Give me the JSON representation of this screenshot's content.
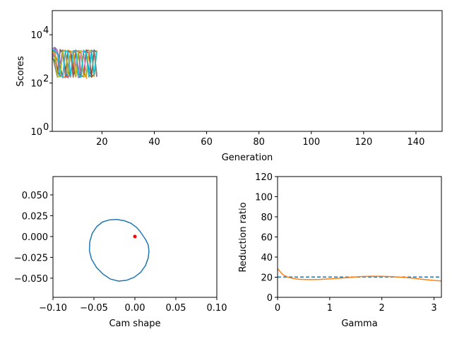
{
  "chart_data": [
    {
      "type": "line",
      "xlabel": "Generation",
      "ylabel": "Scores",
      "yscale": "log",
      "xlim": [
        1,
        150
      ],
      "ylim": [
        1,
        100000
      ],
      "xticks": [
        20,
        40,
        60,
        80,
        100,
        120,
        140
      ],
      "xtick_labels": [
        "20",
        "40",
        "60",
        "80",
        "100",
        "120",
        "140"
      ],
      "yticks": [
        1,
        100,
        10000
      ],
      "ytick_labels_base": [
        "10",
        "10",
        "10"
      ],
      "ytick_labels_exp": [
        "0",
        "2",
        "4"
      ],
      "series": [
        {
          "color": "#1f77b4",
          "x": [
            1,
            2,
            3,
            4,
            5,
            6,
            7,
            8,
            9,
            10,
            11,
            12,
            13,
            14,
            15,
            16,
            17,
            18
          ],
          "y": [
            1800,
            2600,
            1500,
            500,
            180,
            170,
            260,
            2100,
            1900,
            600,
            170,
            180,
            2200,
            1700,
            350,
            200,
            2300,
            1900
          ]
        },
        {
          "color": "#ff7f0e",
          "x": [
            1,
            2,
            3,
            4,
            5,
            6,
            7,
            8,
            9,
            10,
            11,
            12,
            13,
            14,
            15,
            16,
            17,
            18
          ],
          "y": [
            2000,
            1400,
            900,
            300,
            170,
            180,
            2300,
            2000,
            700,
            180,
            2200,
            2100,
            300,
            170,
            2100,
            2200,
            180,
            2300
          ]
        },
        {
          "color": "#2ca02c",
          "x": [
            1,
            2,
            3,
            4,
            5,
            6,
            7,
            8,
            9,
            10,
            11,
            12,
            13,
            14,
            15,
            16,
            17,
            18
          ],
          "y": [
            1200,
            800,
            350,
            180,
            2000,
            2200,
            400,
            170,
            2100,
            1800,
            250,
            190,
            2200,
            2000,
            220,
            180,
            2200,
            200
          ]
        },
        {
          "color": "#d62728",
          "x": [
            1,
            2,
            3,
            4,
            5,
            6,
            7,
            8,
            9,
            10,
            11,
            12,
            13,
            14,
            15,
            16,
            17,
            18
          ],
          "y": [
            2200,
            2000,
            300,
            2100,
            1900,
            200,
            170,
            2200,
            400,
            180,
            2000,
            1700,
            180,
            2200,
            1600,
            180,
            220,
            2100
          ]
        },
        {
          "color": "#9467bd",
          "x": [
            1,
            2,
            3,
            4,
            5,
            6,
            7,
            8,
            9,
            10,
            11,
            12,
            13,
            14,
            15,
            16,
            17,
            18
          ],
          "y": [
            2600,
            3000,
            2200,
            600,
            2300,
            2100,
            180,
            220,
            2000,
            2300,
            400,
            180,
            2100,
            1900,
            190,
            2300,
            2000,
            180
          ]
        },
        {
          "color": "#8c564b",
          "x": [
            1,
            2,
            3,
            4,
            5,
            6,
            7,
            8,
            9,
            10,
            11,
            12,
            13,
            14,
            15,
            16,
            17,
            18
          ],
          "y": [
            1600,
            1200,
            200,
            2400,
            2000,
            300,
            2100,
            1800,
            170,
            2200,
            2000,
            210,
            180,
            2300,
            2200,
            170,
            2400,
            220
          ]
        },
        {
          "color": "#e377c2",
          "x": [
            1,
            2,
            3,
            4,
            5,
            6,
            7,
            8,
            9,
            10,
            11,
            12,
            13,
            14,
            15,
            16,
            17,
            18
          ],
          "y": [
            900,
            2300,
            2100,
            250,
            170,
            2100,
            1900,
            180,
            2300,
            500,
            170,
            2200,
            1900,
            210,
            2000,
            1700,
            190,
            2100
          ]
        },
        {
          "color": "#7f7f7f",
          "x": [
            1,
            2,
            3,
            4,
            5,
            6,
            7,
            8,
            9,
            10,
            11,
            12,
            13,
            14,
            15,
            16,
            17,
            18
          ],
          "y": [
            1400,
            500,
            170,
            2000,
            2300,
            190,
            400,
            2100,
            1800,
            180,
            2200,
            240,
            2100,
            1800,
            170,
            2100,
            2000,
            190
          ]
        },
        {
          "color": "#bcbd22",
          "x": [
            1,
            2,
            3,
            4,
            5,
            6,
            7,
            8,
            9,
            10,
            11,
            12,
            13,
            14,
            15,
            16,
            17,
            18
          ],
          "y": [
            2100,
            1700,
            190,
            180,
            2000,
            2300,
            210,
            2100,
            1900,
            170,
            2000,
            2200,
            180,
            210,
            2300,
            2000,
            180,
            2200
          ]
        },
        {
          "color": "#17becf",
          "x": [
            1,
            2,
            3,
            4,
            5,
            6,
            7,
            8,
            9,
            10,
            11,
            12,
            13,
            14,
            15,
            16,
            17,
            18
          ],
          "y": [
            2400,
            2000,
            1800,
            200,
            180,
            2200,
            2000,
            190,
            2100,
            2300,
            200,
            180,
            2200,
            1900,
            180,
            2200,
            210,
            2000
          ]
        }
      ]
    },
    {
      "type": "line",
      "xlabel": "Cam shape",
      "ylabel": "",
      "xlim": [
        -0.1,
        0.1
      ],
      "ylim": [
        -0.073,
        0.072
      ],
      "xticks": [
        -0.1,
        -0.05,
        0,
        0.05,
        0.1
      ],
      "xtick_labels": [
        "−0.10",
        "−0.05",
        "0.00",
        "0.05",
        "0.10"
      ],
      "yticks": [
        -0.05,
        -0.025,
        0,
        0.025,
        0.05
      ],
      "ytick_labels": [
        "−0.050",
        "−0.025",
        "0.000",
        "0.025",
        "0.050"
      ],
      "curve_color": "#1f77b4",
      "marker_color": "#ff0000",
      "marker": [
        0.0,
        0.0
      ],
      "curve": {
        "x": [
          0.0085,
          0.0133,
          0.0162,
          0.0172,
          0.0162,
          0.0128,
          0.007,
          -0.001,
          -0.01,
          -0.02,
          -0.03,
          -0.039,
          -0.047,
          -0.053,
          -0.0555,
          -0.055,
          -0.052,
          -0.0465,
          -0.0395,
          -0.031,
          -0.022,
          -0.013,
          -0.005,
          0.002,
          0.006,
          0.0085
        ],
        "y": [
          0.003,
          -0.004,
          -0.01,
          -0.0175,
          -0.026,
          -0.035,
          -0.043,
          -0.049,
          -0.0525,
          -0.0535,
          -0.051,
          -0.045,
          -0.037,
          -0.027,
          -0.017,
          -0.006,
          0.004,
          0.012,
          0.0175,
          0.02,
          0.0205,
          0.019,
          0.016,
          0.011,
          0.0065,
          0.003
        ]
      }
    },
    {
      "type": "line",
      "xlabel": "Gamma",
      "ylabel": "Reduction ratio",
      "xlim": [
        0,
        3.1416
      ],
      "ylim": [
        0,
        120
      ],
      "xticks": [
        0,
        1,
        2,
        3
      ],
      "xtick_labels": [
        "0",
        "1",
        "2",
        "3"
      ],
      "yticks": [
        0,
        20,
        40,
        60,
        80,
        100,
        120
      ],
      "ytick_labels": [
        "0",
        "20",
        "40",
        "60",
        "80",
        "100",
        "120"
      ],
      "series": [
        {
          "color": "#1f77b4",
          "dashed": true,
          "x": [
            0,
            3.1416
          ],
          "y": [
            20.2,
            20.2
          ]
        },
        {
          "color": "#ff7f0e",
          "dashed": false,
          "x": [
            0,
            0.1,
            0.2,
            0.3,
            0.4,
            0.6,
            0.8,
            1.0,
            1.2,
            1.4,
            1.6,
            1.8,
            2.0,
            2.2,
            2.4,
            2.6,
            2.8,
            3.0,
            3.14
          ],
          "y": [
            28.5,
            22.5,
            20.0,
            18.8,
            18.0,
            17.6,
            17.8,
            18.3,
            19.0,
            19.8,
            20.6,
            21.0,
            20.9,
            20.5,
            19.9,
            19.0,
            17.8,
            16.8,
            16.2
          ]
        }
      ]
    }
  ]
}
